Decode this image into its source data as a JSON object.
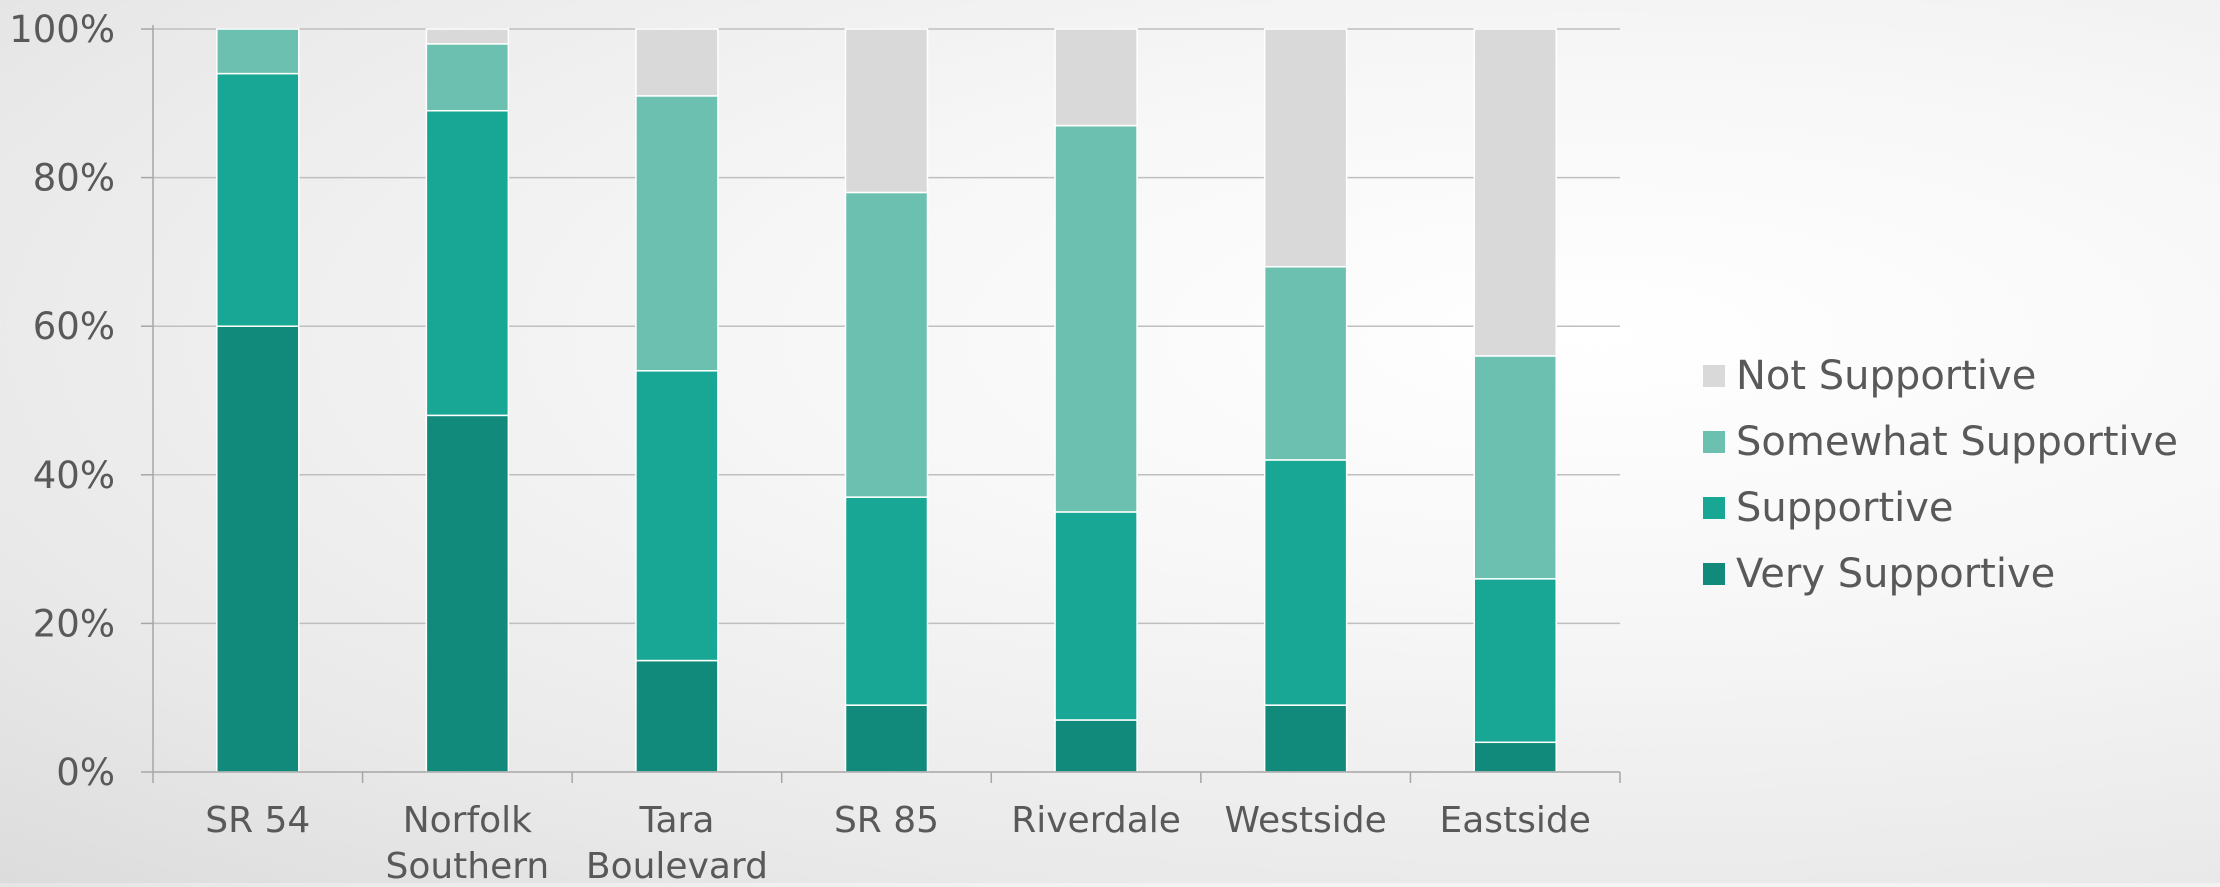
{
  "chart_data": {
    "type": "bar",
    "stacked": true,
    "categories": [
      [
        "SR 54"
      ],
      [
        "Norfolk",
        "Southern"
      ],
      [
        "Tara",
        "Boulevard"
      ],
      [
        "SR 85"
      ],
      [
        "Riverdale"
      ],
      [
        "Westside"
      ],
      [
        "Eastside"
      ]
    ],
    "series": [
      {
        "name": "Very Supportive",
        "color": "#128a7b",
        "values": [
          60,
          48,
          15,
          9,
          7,
          9,
          4
        ]
      },
      {
        "name": "Supportive",
        "color": "#18a794",
        "values": [
          34,
          41,
          39,
          28,
          28,
          33,
          22
        ]
      },
      {
        "name": "Somewhat Supportive",
        "color": "#6cc0b0",
        "values": [
          6,
          9,
          37,
          41,
          52,
          26,
          30
        ]
      },
      {
        "name": "Not Supportive",
        "color": "#d9d9d9",
        "values": [
          0,
          2,
          9,
          22,
          13,
          32,
          44
        ]
      }
    ],
    "yticks": [
      "0%",
      "20%",
      "40%",
      "60%",
      "80%",
      "100%"
    ],
    "ylim": [
      0,
      100
    ],
    "title": "",
    "xlabel": "",
    "ylabel": "",
    "grid": true,
    "legend_position": "right",
    "legend_order": [
      "Not Supportive",
      "Somewhat Supportive",
      "Supportive",
      "Very Supportive"
    ]
  }
}
